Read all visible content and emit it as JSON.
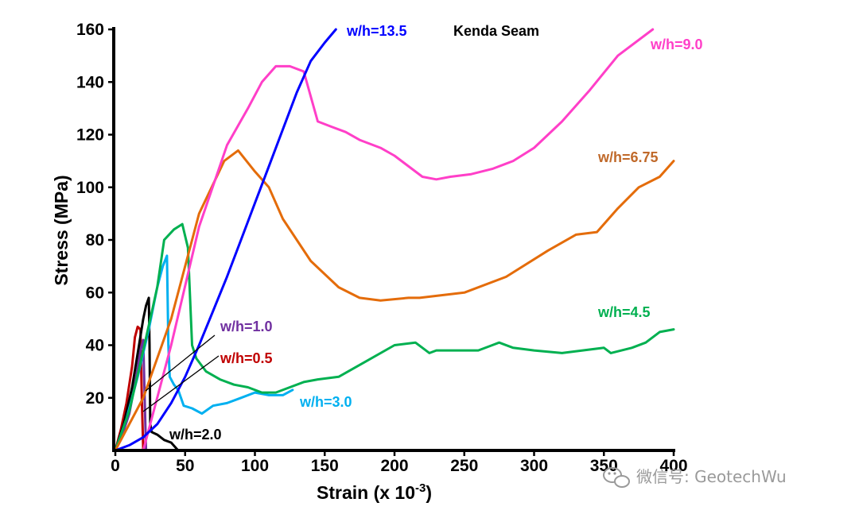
{
  "chart_data": {
    "type": "line",
    "title": "Kenda Seam",
    "xlabel": "Strain (x 10",
    "xlabel_sup": "-3",
    "xlabel_close": ")",
    "ylabel": "Stress (MPa)",
    "xlim": [
      0,
      400
    ],
    "ylim": [
      0,
      160
    ],
    "xticks": [
      "0",
      "50",
      "100",
      "150",
      "200",
      "250",
      "300",
      "350",
      "400"
    ],
    "yticks": [
      "20",
      "40",
      "60",
      "80",
      "100",
      "120",
      "140",
      "160"
    ],
    "series": [
      {
        "name": "w/h=0.5",
        "color": "#c00000",
        "x": [
          0,
          4,
          8,
          12,
          14,
          16,
          18,
          19,
          20
        ],
        "y": [
          0,
          8,
          18,
          32,
          43,
          47,
          46,
          20,
          0
        ]
      },
      {
        "name": "w/h=1.0",
        "color": "#7030a0",
        "x": [
          0,
          5,
          10,
          15,
          18,
          20,
          21,
          22
        ],
        "y": [
          0,
          6,
          14,
          28,
          38,
          42,
          20,
          0
        ]
      },
      {
        "name": "w/h=2.0",
        "color": "#000000",
        "x": [
          0,
          6,
          12,
          17,
          20,
          22,
          24,
          24.5,
          25,
          26,
          30,
          35,
          40,
          45
        ],
        "y": [
          0,
          10,
          24,
          40,
          50,
          55,
          58,
          40,
          10,
          7,
          6,
          4,
          3,
          0
        ]
      },
      {
        "name": "w/h=3.0",
        "color": "#00b0f0",
        "x": [
          0,
          8,
          16,
          24,
          30,
          34,
          37,
          38,
          39,
          42,
          45,
          49,
          55,
          62,
          70,
          80,
          90,
          100,
          110,
          120,
          127
        ],
        "y": [
          0,
          12,
          28,
          46,
          62,
          70,
          74,
          40,
          28,
          25,
          23,
          17,
          16,
          14,
          17,
          18,
          20,
          22,
          21,
          21,
          23
        ]
      },
      {
        "name": "w/h=4.5",
        "color": "#00b050",
        "x": [
          0,
          10,
          20,
          30,
          35,
          42,
          48,
          52,
          55,
          58,
          65,
          75,
          85,
          95,
          105,
          115,
          125,
          135,
          145,
          160,
          180,
          200,
          215,
          225,
          230,
          260,
          270,
          275,
          285,
          300,
          320,
          350,
          355,
          370,
          380,
          390,
          400
        ],
        "y": [
          0,
          15,
          38,
          62,
          80,
          84,
          86,
          77,
          40,
          35,
          30,
          27,
          25,
          24,
          22,
          22,
          24,
          26,
          27,
          28,
          34,
          40,
          41,
          37,
          38,
          38,
          40,
          41,
          39,
          38,
          37,
          39,
          37,
          39,
          41,
          45,
          46
        ]
      },
      {
        "name": "w/h=6.75",
        "color": "#e46c0a",
        "x": [
          0,
          20,
          40,
          60,
          78,
          88,
          100,
          110,
          120,
          140,
          160,
          175,
          190,
          210,
          218,
          250,
          280,
          310,
          330,
          345,
          360,
          375,
          390,
          400
        ],
        "y": [
          0,
          20,
          50,
          90,
          110,
          114,
          106,
          100,
          88,
          72,
          62,
          58,
          57,
          58,
          58,
          60,
          66,
          76,
          82,
          83,
          92,
          100,
          104,
          110
        ]
      },
      {
        "name": "w/h=9.0",
        "color": "#ff3fc8",
        "x": [
          20,
          40,
          60,
          80,
          95,
          105,
          115,
          125,
          135,
          145,
          155,
          165,
          175,
          190,
          200,
          220,
          230,
          240,
          255,
          270,
          285,
          300,
          320,
          340,
          360,
          385
        ],
        "y": [
          0,
          40,
          85,
          116,
          130,
          140,
          146,
          146,
          144,
          125,
          123,
          121,
          118,
          115,
          112,
          104,
          103,
          104,
          105,
          107,
          110,
          115,
          125,
          137,
          150,
          160
        ]
      },
      {
        "name": "w/h=13.5",
        "color": "#0000ff",
        "x": [
          0,
          10,
          20,
          30,
          40,
          50,
          60,
          70,
          80,
          90,
          100,
          110,
          120,
          130,
          140,
          150,
          158
        ],
        "y": [
          0,
          2,
          5,
          10,
          18,
          28,
          40,
          53,
          66,
          80,
          94,
          108,
          122,
          136,
          148,
          155,
          160
        ]
      }
    ]
  },
  "labels": {
    "wh135": "w/h=13.5",
    "wh90": "w/h=9.0",
    "wh675": "w/h=6.75",
    "wh45": "w/h=4.5",
    "wh30": "w/h=3.0",
    "wh10": "w/h=1.0",
    "wh05": "w/h=0.5",
    "wh20": "w/h=2.0",
    "kenda": "Kenda Seam"
  },
  "watermark": {
    "text": "微信号: GeotechWu",
    "color": "#9a9a9a"
  }
}
